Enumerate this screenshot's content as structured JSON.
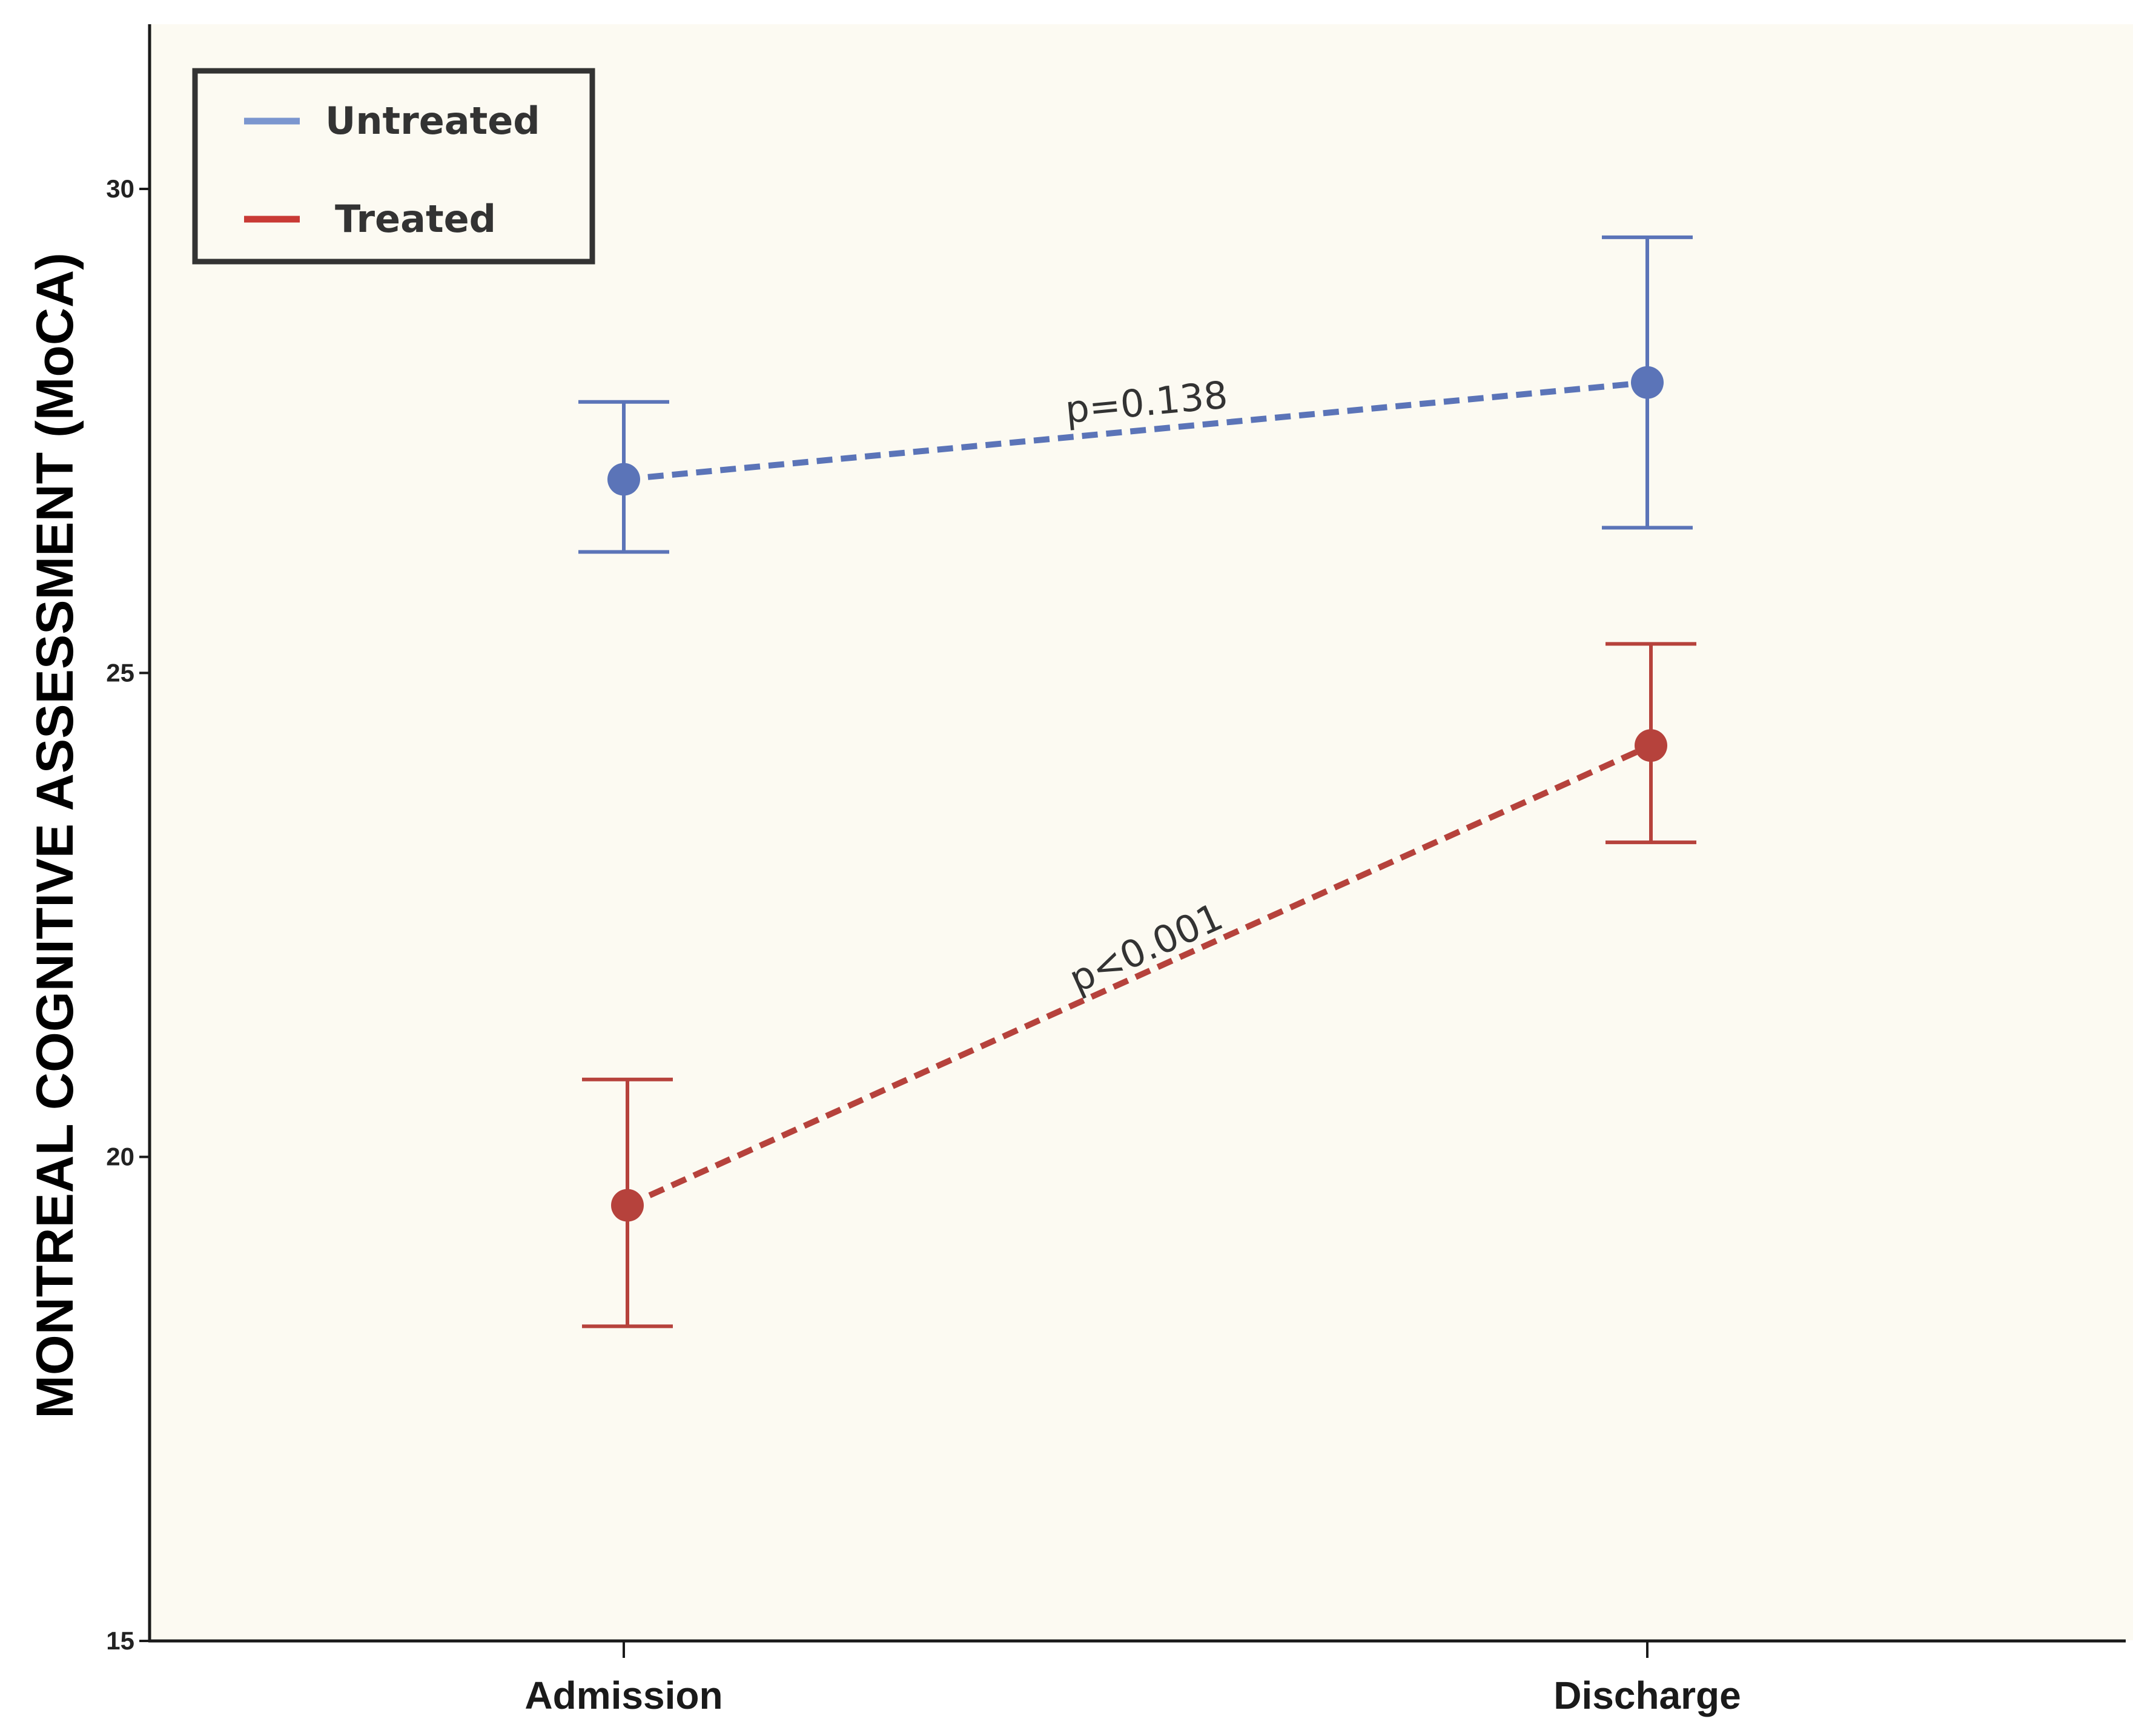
{
  "chart_data": {
    "type": "line",
    "categories": [
      "Admission",
      "Discharge"
    ],
    "ylabel": "MONTREAL COGNITIVE ASSESSMENT (MoCA)",
    "xlabel": "",
    "ylim": [
      15,
      32
    ],
    "yticks": [
      15,
      20,
      25,
      30
    ],
    "grid": false,
    "legend_position": "top-left",
    "series": [
      {
        "name": "Untreated",
        "color": "#5b74b8",
        "legend_color": "#7b96cf",
        "values": [
          27.0,
          28.0
        ],
        "error_low": [
          26.25,
          26.5
        ],
        "error_high": [
          27.8,
          29.5
        ]
      },
      {
        "name": "Treated",
        "color": "#b6423c",
        "legend_color": "#c93a35",
        "values": [
          19.5,
          24.25
        ],
        "error_low": [
          18.25,
          23.25
        ],
        "error_high": [
          20.8,
          25.3
        ]
      }
    ],
    "annotations": [
      {
        "text": "p=0.138",
        "series": "Untreated"
      },
      {
        "text": "p<0.001",
        "series": "Treated"
      }
    ]
  }
}
